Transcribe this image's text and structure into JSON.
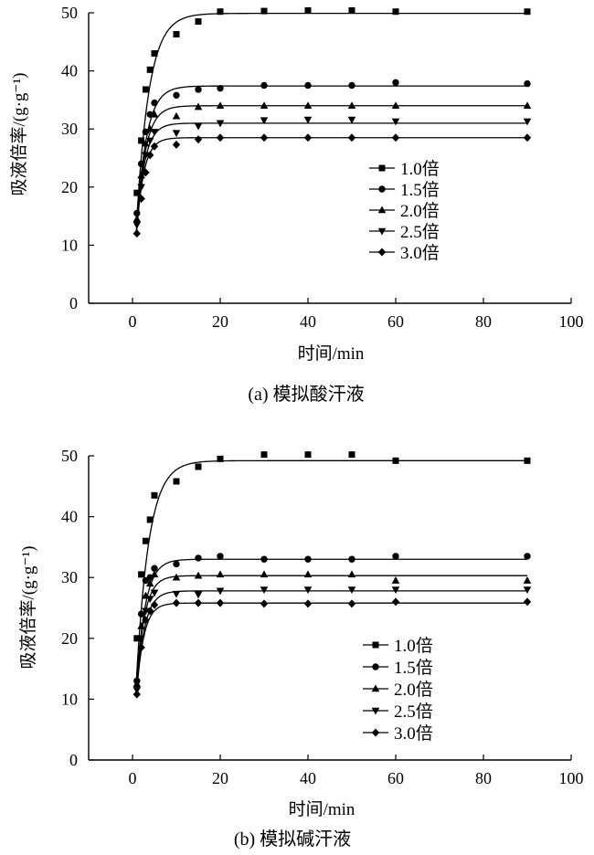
{
  "chart_data": [
    {
      "type": "scatter",
      "caption": "(a) 模拟酸汗液",
      "xlabel": "时间/min",
      "ylabel": "吸液倍率/(g·g⁻¹)",
      "xlim": [
        -10,
        100
      ],
      "ylim": [
        0,
        50
      ],
      "xticks": [
        0,
        20,
        40,
        60,
        80,
        100
      ],
      "yticks": [
        0,
        10,
        20,
        30,
        40,
        50
      ],
      "legend_position": "center-right",
      "series": [
        {
          "name": "1.0倍",
          "marker": "square",
          "plateau": 49.9,
          "k": 0.35,
          "x": [
            1,
            2,
            3,
            4,
            5,
            10,
            15,
            20,
            30,
            40,
            50,
            60,
            90
          ],
          "y": [
            19,
            28,
            36.8,
            40.2,
            43,
            46.3,
            48.5,
            50.2,
            50.3,
            50.4,
            50.4,
            50.2,
            50.2
          ]
        },
        {
          "name": "1.5倍",
          "marker": "circle",
          "plateau": 37.4,
          "k": 0.45,
          "x": [
            1,
            2,
            3,
            4,
            5,
            10,
            15,
            20,
            30,
            40,
            50,
            60,
            90
          ],
          "y": [
            15.5,
            24,
            29.5,
            32.5,
            34.5,
            35.8,
            36.8,
            37,
            37.5,
            37.5,
            37.5,
            38,
            37.8
          ]
        },
        {
          "name": "2.0倍",
          "marker": "triangle-up",
          "plateau": 34.0,
          "k": 0.5,
          "x": [
            1,
            2,
            3,
            4,
            5,
            10,
            15,
            20,
            30,
            40,
            50,
            60,
            90
          ],
          "y": [
            14.5,
            22,
            27.5,
            30,
            32.5,
            32.2,
            33.8,
            34,
            34,
            34,
            34,
            34,
            34
          ]
        },
        {
          "name": "2.5倍",
          "marker": "triangle-down",
          "plateau": 31.0,
          "k": 0.55,
          "x": [
            1,
            2,
            3,
            4,
            5,
            10,
            15,
            20,
            30,
            40,
            50,
            60,
            90
          ],
          "y": [
            13.5,
            20,
            25.5,
            28,
            29.5,
            29.3,
            30.5,
            31,
            31.5,
            31.6,
            31.6,
            31.3,
            31.3
          ]
        },
        {
          "name": "3.0倍",
          "marker": "diamond",
          "plateau": 28.5,
          "k": 0.6,
          "x": [
            1,
            2,
            3,
            4,
            5,
            10,
            15,
            20,
            30,
            40,
            50,
            60,
            90
          ],
          "y": [
            12,
            18,
            22.5,
            25.5,
            27,
            27.3,
            28.2,
            28.5,
            28.5,
            28.5,
            28.5,
            28.5,
            28.5
          ]
        }
      ]
    },
    {
      "type": "scatter",
      "caption": "(b) 模拟碱汗液",
      "xlabel": "时间/min",
      "ylabel": "吸液倍率/(g·g⁻¹)",
      "xlim": [
        -10,
        100
      ],
      "ylim": [
        0,
        50
      ],
      "xticks": [
        0,
        20,
        40,
        60,
        80,
        100
      ],
      "yticks": [
        0,
        10,
        20,
        30,
        40,
        50
      ],
      "legend_position": "center-right",
      "series": [
        {
          "name": "1.0倍",
          "marker": "square",
          "plateau": 49.2,
          "k": 0.35,
          "x": [
            1,
            2,
            3,
            4,
            5,
            10,
            15,
            20,
            30,
            40,
            50,
            60,
            90
          ],
          "y": [
            20,
            30.5,
            36,
            39.5,
            43.5,
            45.8,
            48.2,
            49.5,
            50.2,
            50.2,
            50.2,
            49.2,
            49.2
          ]
        },
        {
          "name": "1.5倍",
          "marker": "circle",
          "plateau": 33.0,
          "k": 0.5,
          "x": [
            1,
            2,
            3,
            4,
            5,
            10,
            15,
            20,
            30,
            40,
            50,
            60,
            90
          ],
          "y": [
            13,
            24,
            29.5,
            30,
            31.5,
            32.2,
            33.2,
            33.5,
            33,
            33,
            33,
            33.5,
            33.5
          ]
        },
        {
          "name": "2.0倍",
          "marker": "triangle-up",
          "plateau": 30.3,
          "k": 0.55,
          "x": [
            1,
            2,
            3,
            4,
            5,
            10,
            15,
            20,
            30,
            40,
            50,
            60,
            90
          ],
          "y": [
            12.5,
            22,
            27,
            29,
            30.5,
            30,
            30.3,
            30.5,
            30.5,
            30.5,
            30.5,
            29.5,
            29.5
          ]
        },
        {
          "name": "2.5倍",
          "marker": "triangle-down",
          "plateau": 27.8,
          "k": 0.55,
          "x": [
            1,
            2,
            3,
            4,
            5,
            10,
            15,
            20,
            30,
            40,
            50,
            60,
            90
          ],
          "y": [
            11.5,
            20,
            24.5,
            26.5,
            27.5,
            27.3,
            27.2,
            27.8,
            28,
            28,
            28,
            28,
            28
          ]
        },
        {
          "name": "3.0倍",
          "marker": "diamond",
          "plateau": 25.8,
          "k": 0.6,
          "x": [
            1,
            2,
            3,
            4,
            5,
            10,
            15,
            20,
            30,
            40,
            50,
            60,
            90
          ],
          "y": [
            10.8,
            18.5,
            23,
            24.5,
            25.5,
            25.8,
            25.8,
            25.8,
            25.7,
            25.7,
            25.7,
            26,
            26
          ]
        }
      ]
    }
  ]
}
